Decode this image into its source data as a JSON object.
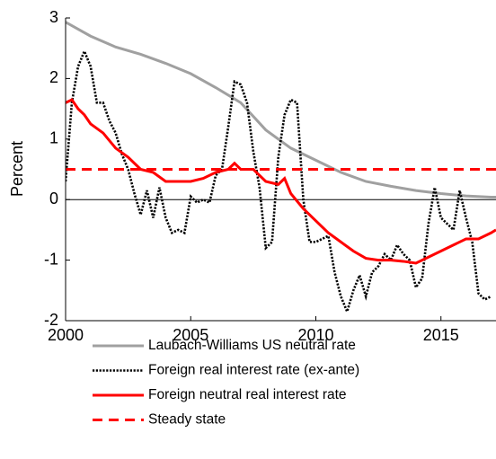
{
  "chart_data": {
    "type": "line",
    "y_label": "Percent",
    "xlim": [
      2000,
      2017.2
    ],
    "xticks": [
      2000,
      2005,
      2010,
      2015
    ],
    "ylim": [
      -2,
      3
    ],
    "yticks": [
      -2,
      -1,
      0,
      1,
      2,
      3
    ],
    "series": [
      {
        "name": "Laubach-Williams US neutral rate",
        "color": "#a0a0a0",
        "style": "solid",
        "x": [
          2000,
          2001,
          2002,
          2003,
          2004,
          2005,
          2006,
          2007,
          2008,
          2009,
          2010,
          2011,
          2012,
          2013,
          2014,
          2015,
          2016,
          2017,
          2017.2
        ],
        "values": [
          2.93,
          2.7,
          2.52,
          2.4,
          2.25,
          2.08,
          1.85,
          1.6,
          1.15,
          0.85,
          0.65,
          0.45,
          0.3,
          0.22,
          0.15,
          0.1,
          0.06,
          0.04,
          0.04
        ]
      },
      {
        "name": "Foreign real interest rate (ex-ante)",
        "color": "#000000",
        "style": "dotted",
        "x": [
          2000,
          2000.25,
          2000.5,
          2000.75,
          2001,
          2001.25,
          2001.5,
          2001.75,
          2002,
          2002.25,
          2002.5,
          2002.75,
          2003,
          2003.25,
          2003.5,
          2003.75,
          2004,
          2004.25,
          2004.5,
          2004.75,
          2005,
          2005.25,
          2005.5,
          2005.75,
          2006,
          2006.25,
          2006.5,
          2006.75,
          2007,
          2007.25,
          2007.5,
          2007.75,
          2008,
          2008.25,
          2008.5,
          2008.75,
          2009,
          2009.25,
          2009.5,
          2009.75,
          2010,
          2010.25,
          2010.5,
          2010.75,
          2011,
          2011.25,
          2011.5,
          2011.75,
          2012,
          2012.25,
          2012.5,
          2012.75,
          2013,
          2013.25,
          2013.5,
          2013.75,
          2014,
          2014.25,
          2014.5,
          2014.75,
          2015,
          2015.25,
          2015.5,
          2015.75,
          2016,
          2016.25,
          2016.5,
          2016.75,
          2017
        ],
        "values": [
          0.3,
          1.6,
          2.2,
          2.45,
          2.2,
          1.6,
          1.6,
          1.3,
          1.1,
          0.75,
          0.5,
          0.1,
          -0.25,
          0.15,
          -0.3,
          0.2,
          -0.3,
          -0.55,
          -0.5,
          -0.55,
          0.05,
          -0.05,
          0,
          -0.05,
          0.4,
          0.5,
          1.2,
          1.95,
          1.9,
          1.6,
          0.8,
          0.2,
          -0.8,
          -0.7,
          0.7,
          1.4,
          1.65,
          1.6,
          0.0,
          -0.7,
          -0.7,
          -0.65,
          -0.6,
          -1.2,
          -1.6,
          -1.85,
          -1.5,
          -1.25,
          -1.6,
          -1.2,
          -1.1,
          -0.9,
          -1.0,
          -0.75,
          -0.9,
          -1.0,
          -1.45,
          -1.3,
          -0.4,
          0.2,
          -0.3,
          -0.4,
          -0.5,
          0.15,
          -0.3,
          -0.7,
          -1.55,
          -1.65,
          -1.6
        ]
      },
      {
        "name": "Foreign neutral real interest rate",
        "color": "#ff0000",
        "style": "solid",
        "x": [
          2000,
          2000.25,
          2000.5,
          2000.75,
          2001,
          2001.5,
          2002,
          2002.5,
          2003,
          2003.5,
          2004,
          2004.5,
          2005,
          2005.5,
          2006,
          2006.5,
          2006.75,
          2007,
          2007.5,
          2008,
          2008.5,
          2008.75,
          2009,
          2009.5,
          2010,
          2010.5,
          2011,
          2011.5,
          2012,
          2012.5,
          2013,
          2013.5,
          2014,
          2014.5,
          2015,
          2015.5,
          2016,
          2016.5,
          2017,
          2017.2
        ],
        "values": [
          1.6,
          1.65,
          1.5,
          1.4,
          1.25,
          1.1,
          0.85,
          0.7,
          0.5,
          0.45,
          0.3,
          0.3,
          0.3,
          0.35,
          0.45,
          0.5,
          0.6,
          0.5,
          0.5,
          0.3,
          0.25,
          0.35,
          0.1,
          -0.15,
          -0.35,
          -0.55,
          -0.7,
          -0.85,
          -0.97,
          -1.0,
          -1.0,
          -1.02,
          -1.05,
          -0.95,
          -0.85,
          -0.75,
          -0.65,
          -0.65,
          -0.55,
          -0.5
        ]
      },
      {
        "name": "Steady state",
        "color": "#ff0000",
        "style": "dashed",
        "x": [
          2000,
          2017.2
        ],
        "values": [
          0.5,
          0.5
        ]
      }
    ]
  }
}
